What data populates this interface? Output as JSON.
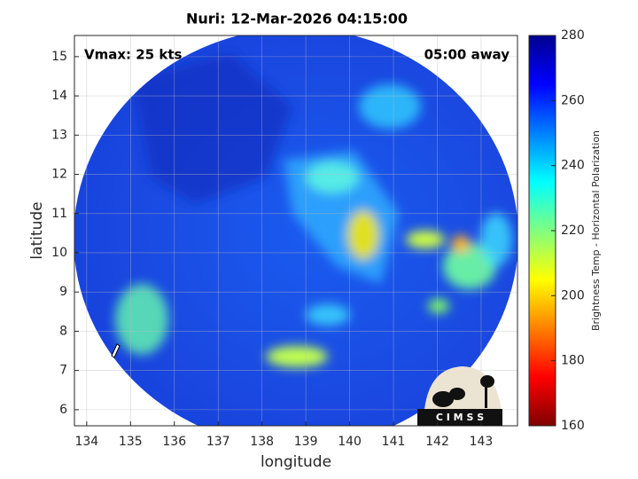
{
  "chart_data": {
    "type": "image",
    "title": "Nuri: 12-Mar-2026 04:15:00",
    "annotations": [
      "Vmax: 25 kts",
      "05:00 away"
    ],
    "xlabel": "longitude",
    "ylabel": "latitude",
    "xlim": [
      133.72,
      143.83
    ],
    "ylim": [
      5.59,
      15.54
    ],
    "xticks": [
      134,
      135,
      136,
      137,
      138,
      139,
      140,
      141,
      142,
      143
    ],
    "yticks": [
      6,
      7,
      8,
      9,
      10,
      11,
      12,
      13,
      14,
      15
    ],
    "grid": true,
    "colorbar": {
      "label": "Brightness Temp - Horizontal Polarization",
      "lim": [
        160,
        280
      ],
      "ticks": [
        160,
        180,
        200,
        220,
        240,
        260,
        280
      ],
      "colormap": [
        "#800000",
        "#ff0000",
        "#ff8000",
        "#ffff00",
        "#80ff80",
        "#00ffff",
        "#0080ff",
        "#0000ff",
        "#00008f"
      ]
    },
    "logo": "C I M S S"
  }
}
